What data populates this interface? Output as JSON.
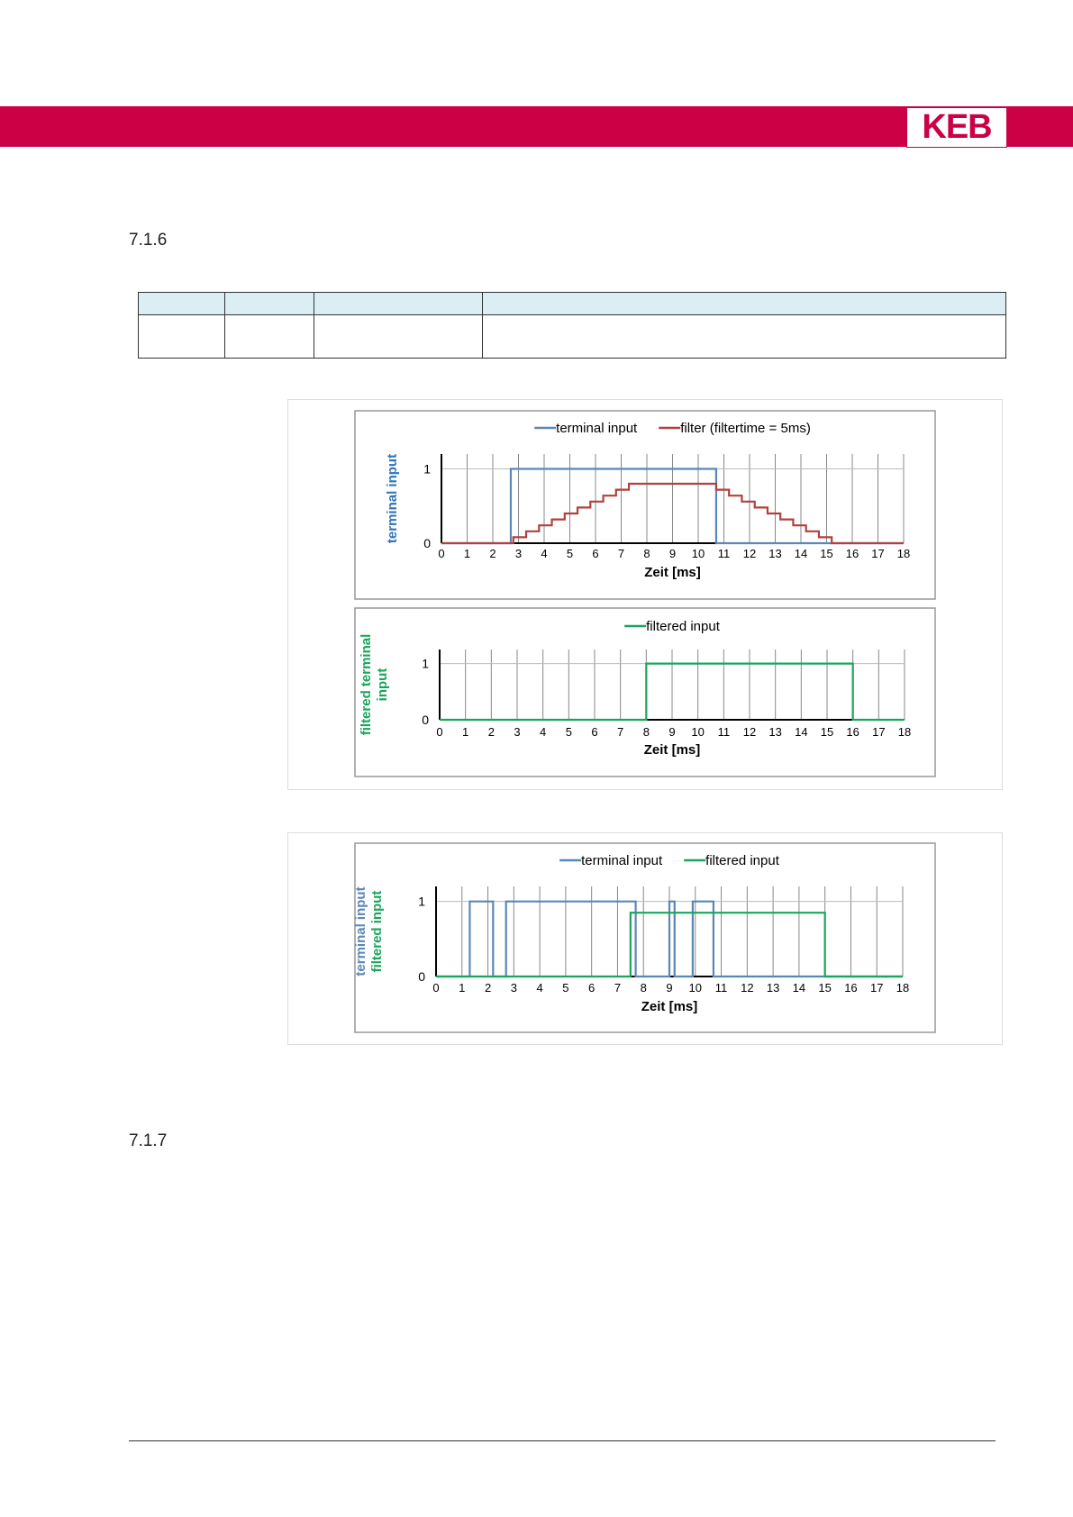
{
  "header": {
    "logo": "KEB"
  },
  "sections": [
    "7.1.6",
    "7.1.7"
  ],
  "chart_data": [
    {
      "type": "line",
      "xlabel": "Zeit [ms]",
      "ylabel": [
        "terminal input"
      ],
      "ylabel_color": [
        "#2e75b6"
      ],
      "xlim": [
        0,
        18
      ],
      "ylim": [
        0,
        1.2
      ],
      "xticks": [
        0,
        1,
        2,
        3,
        4,
        5,
        6,
        7,
        8,
        9,
        10,
        11,
        12,
        13,
        14,
        15,
        16,
        17,
        18
      ],
      "yticks": [
        0,
        1
      ],
      "grid": true,
      "series": [
        {
          "name": "terminal input",
          "color": "#5b87b5",
          "x": [
            0,
            2.7,
            2.7,
            10.7,
            10.7,
            18
          ],
          "values": [
            0,
            0,
            1,
            1,
            0,
            0
          ]
        },
        {
          "name": "filter (filtertime = 5ms)",
          "color": "#b0413e",
          "x": [
            0,
            2.8,
            2.8,
            3.3,
            3.3,
            3.8,
            3.8,
            4.3,
            4.3,
            4.8,
            4.8,
            5.3,
            5.3,
            5.8,
            5.8,
            6.3,
            6.3,
            6.8,
            6.8,
            7.3,
            7.3,
            10.7,
            10.7,
            11.2,
            11.2,
            11.7,
            11.7,
            12.2,
            12.2,
            12.7,
            12.7,
            13.2,
            13.2,
            13.7,
            13.7,
            14.2,
            14.2,
            14.7,
            14.7,
            15.2,
            15.2,
            18
          ],
          "values": [
            0,
            0,
            0.08,
            0.08,
            0.16,
            0.16,
            0.24,
            0.24,
            0.32,
            0.32,
            0.4,
            0.4,
            0.48,
            0.48,
            0.56,
            0.56,
            0.64,
            0.64,
            0.72,
            0.72,
            0.8,
            0.8,
            0.72,
            0.72,
            0.64,
            0.64,
            0.56,
            0.56,
            0.48,
            0.48,
            0.4,
            0.4,
            0.32,
            0.32,
            0.24,
            0.24,
            0.16,
            0.16,
            0.08,
            0.08,
            0,
            0
          ]
        }
      ]
    },
    {
      "type": "line",
      "xlabel": "Zeit [ms]",
      "ylabel": [
        "filtered terminal",
        "input"
      ],
      "ylabel_color": [
        "#1aa65a",
        "#1aa65a"
      ],
      "xlim": [
        0,
        18
      ],
      "ylim": [
        0,
        1.25
      ],
      "xticks": [
        0,
        1,
        2,
        3,
        4,
        5,
        6,
        7,
        8,
        9,
        10,
        11,
        12,
        13,
        14,
        15,
        16,
        17,
        18
      ],
      "yticks": [
        0,
        1
      ],
      "grid": true,
      "series": [
        {
          "name": "filtered input",
          "color": "#1aa65a",
          "x": [
            0,
            8,
            8,
            16,
            16,
            18
          ],
          "values": [
            0,
            0,
            1,
            1,
            0,
            0
          ]
        }
      ]
    },
    {
      "type": "line",
      "xlabel": "Zeit [ms]",
      "ylabel": [
        "terminal input",
        "filtered input"
      ],
      "ylabel_color": [
        "#5b87b5",
        "#1aa65a"
      ],
      "xlim": [
        0,
        18
      ],
      "ylim": [
        0,
        1.2
      ],
      "xticks": [
        0,
        1,
        2,
        3,
        4,
        5,
        6,
        7,
        8,
        9,
        10,
        11,
        12,
        13,
        14,
        15,
        16,
        17,
        18
      ],
      "yticks": [
        0,
        1
      ],
      "grid": true,
      "series": [
        {
          "name": "terminal input",
          "color": "#5b87b5",
          "x": [
            0,
            1.3,
            1.3,
            2.2,
            2.2,
            2.7,
            2.7,
            7.7,
            7.7,
            9.0,
            9.0,
            9.2,
            9.2,
            9.9,
            9.9,
            10.7,
            10.7,
            18
          ],
          "values": [
            0,
            0,
            1,
            1,
            0,
            0,
            1,
            1,
            0,
            0,
            1,
            1,
            0,
            0,
            1,
            1,
            0,
            0
          ]
        },
        {
          "name": "filtered input",
          "color": "#1aa65a",
          "x": [
            0,
            7.5,
            7.5,
            15,
            15,
            18
          ],
          "values": [
            0,
            0,
            0.85,
            0.85,
            0,
            0
          ]
        }
      ]
    }
  ]
}
